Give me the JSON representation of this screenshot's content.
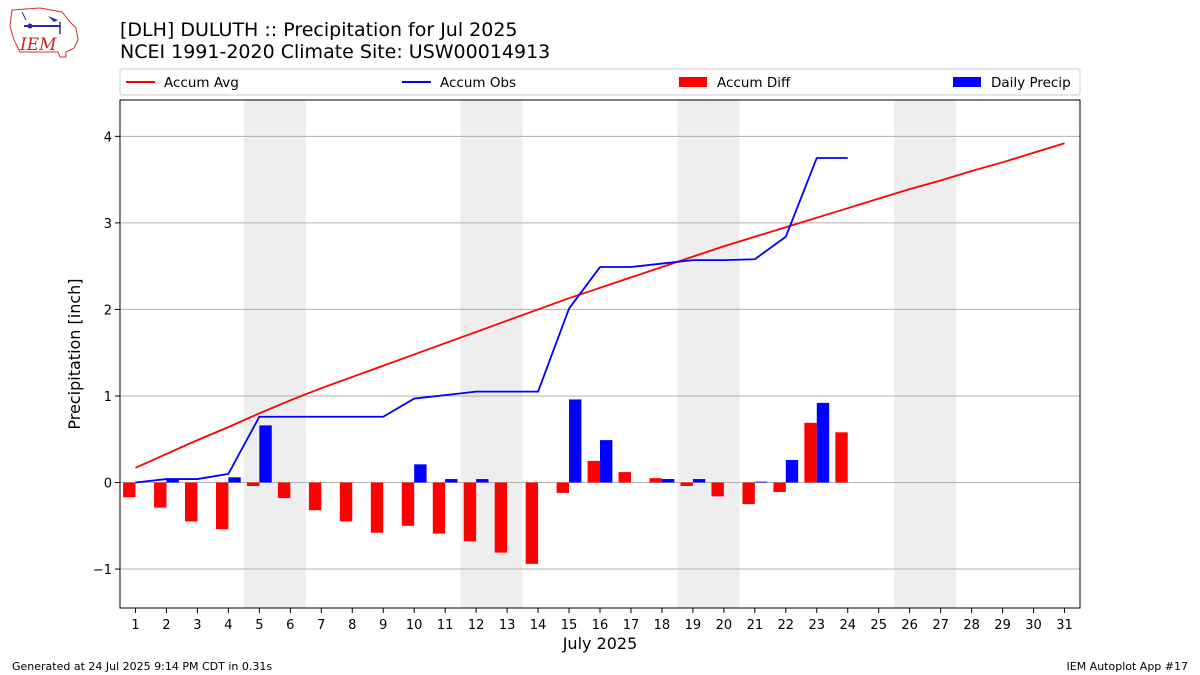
{
  "chart_data": {
    "type": "bar",
    "title": "[DLH] DULUTH :: Precipitation for Jul 2025",
    "subtitle": "NCEI 1991-2020 Climate Site: USW00014913",
    "xlabel": "July 2025",
    "ylabel": "Precipitation [inch]",
    "ylim": [
      -1.45,
      4.42
    ],
    "yticks": [
      -1,
      0,
      1,
      2,
      3,
      4
    ],
    "ytick_labels": [
      "−1",
      "0",
      "1",
      "2",
      "3",
      "4"
    ],
    "xlim": [
      0.5,
      31.5
    ],
    "grid": "horizontal",
    "legend_position": "top",
    "weekend_shading": [
      [
        4.5,
        6.5
      ],
      [
        11.5,
        13.5
      ],
      [
        18.5,
        20.5
      ],
      [
        25.5,
        27.5
      ]
    ],
    "days": [
      1,
      2,
      3,
      4,
      5,
      6,
      7,
      8,
      9,
      10,
      11,
      12,
      13,
      14,
      15,
      16,
      17,
      18,
      19,
      20,
      21,
      22,
      23,
      24,
      25,
      26,
      27,
      28,
      29,
      30,
      31
    ],
    "series": [
      {
        "name": "Accum Avg",
        "kind": "line",
        "color": "#ff0000",
        "values": [
          0.17,
          0.33,
          0.49,
          0.64,
          0.8,
          0.95,
          1.09,
          1.22,
          1.35,
          1.48,
          1.61,
          1.74,
          1.87,
          2.0,
          2.13,
          2.25,
          2.37,
          2.49,
          2.61,
          2.73,
          2.84,
          2.95,
          3.06,
          3.17,
          3.28,
          3.39,
          3.49,
          3.6,
          3.7,
          3.81,
          3.92
        ]
      },
      {
        "name": "Accum Obs",
        "kind": "line",
        "color": "#0000ff",
        "values": [
          0.0,
          0.04,
          0.04,
          0.1,
          0.76,
          0.76,
          0.76,
          0.76,
          0.76,
          0.97,
          1.01,
          1.05,
          1.05,
          1.05,
          2.01,
          2.49,
          2.49,
          2.53,
          2.57,
          2.57,
          2.58,
          2.84,
          3.75,
          3.75
        ]
      },
      {
        "name": "Accum Diff",
        "kind": "bar",
        "color": "#ff0000",
        "values": [
          -0.17,
          -0.29,
          -0.45,
          -0.54,
          -0.04,
          -0.18,
          -0.32,
          -0.45,
          -0.58,
          -0.5,
          -0.59,
          -0.68,
          -0.81,
          -0.94,
          -0.12,
          0.25,
          0.12,
          0.05,
          -0.04,
          -0.16,
          -0.25,
          -0.11,
          0.69,
          0.58
        ]
      },
      {
        "name": "Daily Precip",
        "kind": "bar",
        "color": "#0000ff",
        "values": [
          0.0,
          0.04,
          0.0,
          0.06,
          0.66,
          0.0,
          0.0,
          0.0,
          0.0,
          0.21,
          0.04,
          0.04,
          0.0,
          0.0,
          0.96,
          0.49,
          0.0,
          0.04,
          0.04,
          0.0,
          0.01,
          0.26,
          0.92,
          0.0
        ]
      }
    ]
  },
  "footer": {
    "left": "Generated at 24 Jul 2025 9:14 PM CDT in 0.31s",
    "right": "IEM Autoplot App #17"
  },
  "logo": {
    "text": "IEM",
    "color": "#cc2222"
  }
}
